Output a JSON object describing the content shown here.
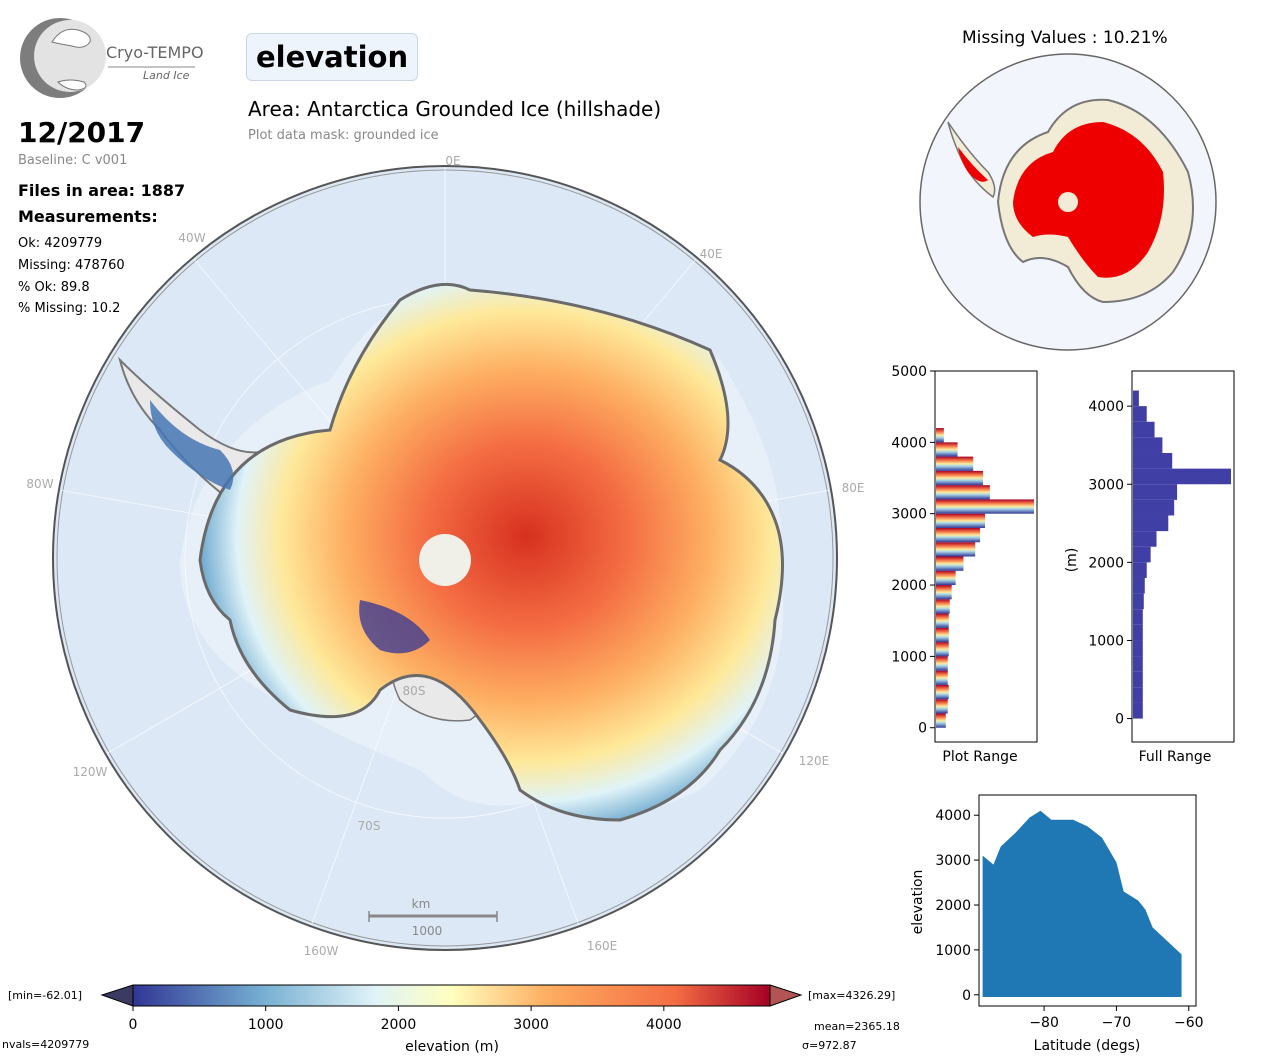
{
  "logo": {
    "name": "Cryo-TEMPO",
    "subtitle": "Land Ice"
  },
  "header": {
    "parameter": "elevation",
    "area": "Area: Antarctica Grounded Ice (hillshade)",
    "mask": "Plot data mask: grounded ice"
  },
  "info": {
    "date": "12/2017",
    "baseline": "Baseline: C v001",
    "files": "Files in area: 1887",
    "measurements_heading": "Measurements:",
    "ok": "Ok: 4209779",
    "missing": "Missing: 478760",
    "pct_ok": "% Ok: 89.8",
    "pct_missing": "% Missing: 10.2"
  },
  "map": {
    "longitude_labels": [
      "0E",
      "40E",
      "80E",
      "120E",
      "160E",
      "160W",
      "120W",
      "80W",
      "40W"
    ],
    "latitude_labels": [
      "80S",
      "70S"
    ],
    "scalebar": {
      "unit": "km",
      "value": "1000"
    }
  },
  "missing_map": {
    "title": "Missing Values : 10.21%"
  },
  "colorbar": {
    "label": "elevation (m)",
    "ticks": [
      "0",
      "1000",
      "2000",
      "3000",
      "4000"
    ],
    "min_label": "[min=-62.01]",
    "max_label": "[max=4326.29]",
    "nvals": "nvals=4209779",
    "mean": "mean=2365.18",
    "sigma": "σ=972.87"
  },
  "chart_data": [
    {
      "type": "bar",
      "orientation": "horizontal",
      "title": "",
      "xlabel": "Plot Range",
      "ylabel": "",
      "ylim": [
        -200,
        5000
      ],
      "yticks": [
        0,
        1000,
        2000,
        3000,
        4000,
        5000
      ],
      "tick_labels": [
        "0",
        "1000",
        "2000",
        "3000",
        "4000",
        "5000"
      ],
      "bins": [
        0,
        200,
        400,
        600,
        800,
        1000,
        1200,
        1400,
        1600,
        1800,
        2000,
        2200,
        2400,
        2600,
        2800,
        3000,
        3200,
        3400,
        3600,
        3800,
        4000
      ],
      "relative_counts": [
        0.1,
        0.12,
        0.13,
        0.12,
        0.12,
        0.13,
        0.13,
        0.13,
        0.14,
        0.16,
        0.2,
        0.28,
        0.4,
        0.45,
        0.5,
        1.0,
        0.55,
        0.48,
        0.38,
        0.22,
        0.08
      ]
    },
    {
      "type": "bar",
      "orientation": "horizontal",
      "title": "",
      "xlabel": "Full Range",
      "ylabel": "(m)",
      "ylim": [
        -300,
        4450
      ],
      "yticks": [
        0,
        1000,
        2000,
        3000,
        4000
      ],
      "tick_labels": [
        "0",
        "1000",
        "2000",
        "3000",
        "4000"
      ],
      "bins": [
        0,
        200,
        400,
        600,
        800,
        1000,
        1200,
        1400,
        1600,
        1800,
        2000,
        2200,
        2400,
        2600,
        2800,
        3000,
        3200,
        3400,
        3600,
        3800,
        4000
      ],
      "relative_counts": [
        0.1,
        0.1,
        0.1,
        0.1,
        0.1,
        0.1,
        0.1,
        0.11,
        0.12,
        0.14,
        0.18,
        0.24,
        0.36,
        0.42,
        0.45,
        1.0,
        0.4,
        0.3,
        0.22,
        0.14,
        0.06
      ]
    },
    {
      "type": "scatter",
      "title": "",
      "xlabel": "Latitude (degs)",
      "ylabel": "elevation",
      "xlim": [
        -89,
        -59
      ],
      "ylim": [
        -250,
        4450
      ],
      "xticks": [
        -80,
        -70,
        -60
      ],
      "yticks": [
        0,
        1000,
        2000,
        3000,
        4000
      ],
      "xtick_labels": [
        "−80",
        "−70",
        "−60"
      ],
      "ytick_labels": [
        "0",
        "1000",
        "2000",
        "3000",
        "4000"
      ],
      "envelope_upper": [
        [
          -88.5,
          3100
        ],
        [
          -87,
          2900
        ],
        [
          -86,
          3300
        ],
        [
          -84,
          3600
        ],
        [
          -82,
          3950
        ],
        [
          -80.5,
          4100
        ],
        [
          -79,
          3900
        ],
        [
          -76,
          3900
        ],
        [
          -74,
          3750
        ],
        [
          -72,
          3500
        ],
        [
          -70,
          2950
        ],
        [
          -69,
          2300
        ],
        [
          -67,
          2100
        ],
        [
          -66,
          1900
        ],
        [
          -65,
          1500
        ],
        [
          -63,
          1200
        ],
        [
          -61,
          900
        ]
      ],
      "color": "#1f77b4"
    }
  ]
}
